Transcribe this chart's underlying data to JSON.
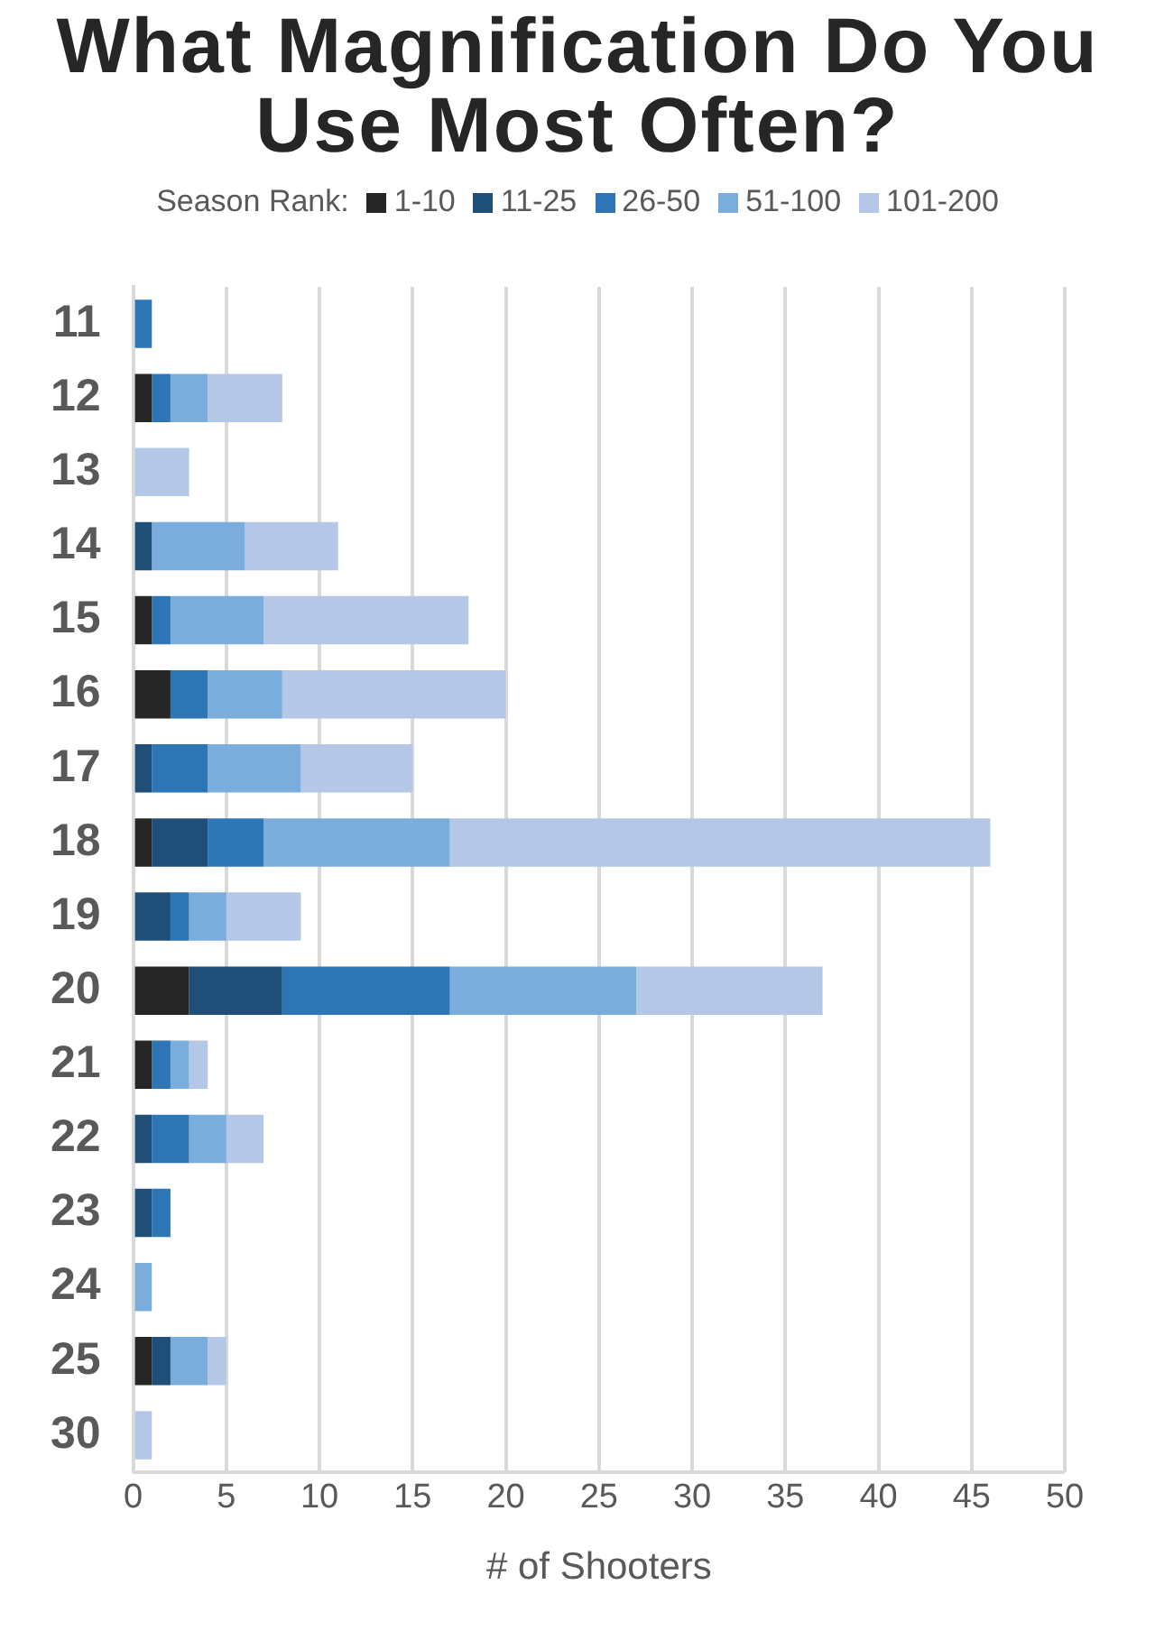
{
  "chart_data": {
    "type": "bar",
    "orientation": "horizontal",
    "stacked": true,
    "title": "What Magnification Do You Use Most Often?",
    "legend_title": "Season Rank:",
    "xlabel": "# of Shooters",
    "categories": [
      "11",
      "12",
      "13",
      "14",
      "15",
      "16",
      "17",
      "18",
      "19",
      "20",
      "21",
      "22",
      "23",
      "24",
      "25",
      "30"
    ],
    "series": [
      {
        "name": "1-10",
        "color": "#262626",
        "values": [
          0,
          1,
          0,
          0,
          1,
          2,
          0,
          1,
          0,
          3,
          1,
          0,
          0,
          0,
          1,
          0
        ]
      },
      {
        "name": "11-25",
        "color": "#1f4e79",
        "values": [
          0,
          0,
          0,
          1,
          0,
          0,
          1,
          3,
          2,
          5,
          0,
          1,
          1,
          0,
          1,
          0
        ]
      },
      {
        "name": "26-50",
        "color": "#2e75b6",
        "values": [
          1,
          1,
          0,
          0,
          1,
          2,
          3,
          3,
          1,
          9,
          1,
          2,
          1,
          0,
          0,
          0
        ]
      },
      {
        "name": "51-100",
        "color": "#7aaddc",
        "values": [
          0,
          2,
          0,
          5,
          5,
          4,
          5,
          10,
          2,
          10,
          1,
          2,
          0,
          1,
          2,
          0
        ]
      },
      {
        "name": "101-200",
        "color": "#b4c7e7",
        "values": [
          0,
          4,
          3,
          5,
          11,
          12,
          6,
          29,
          4,
          10,
          1,
          2,
          0,
          0,
          1,
          1
        ]
      }
    ],
    "xlim": [
      0,
      50
    ],
    "xticks": [
      0,
      5,
      10,
      15,
      20,
      25,
      30,
      35,
      40,
      45,
      50
    ],
    "grid": "x",
    "legend": "top"
  }
}
